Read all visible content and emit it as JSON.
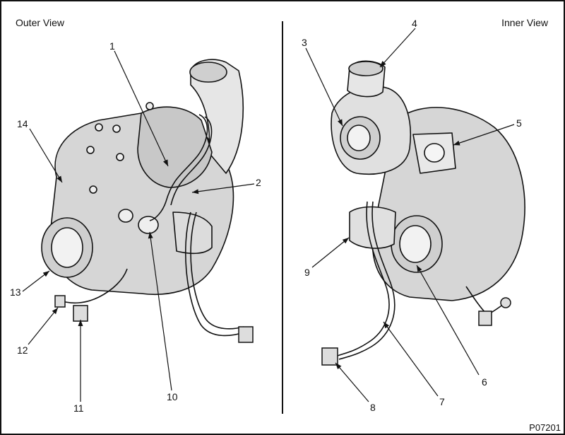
{
  "views": {
    "outer_title": "Outer View",
    "inner_title": "Inner View"
  },
  "callouts": [
    "1",
    "2",
    "3",
    "4",
    "5",
    "6",
    "7",
    "8",
    "9",
    "10",
    "11",
    "12",
    "13",
    "14"
  ],
  "figure_code": "P07201",
  "colors": {
    "line": "#111111",
    "shade": "#bdbdbd",
    "background": "#ffffff"
  }
}
